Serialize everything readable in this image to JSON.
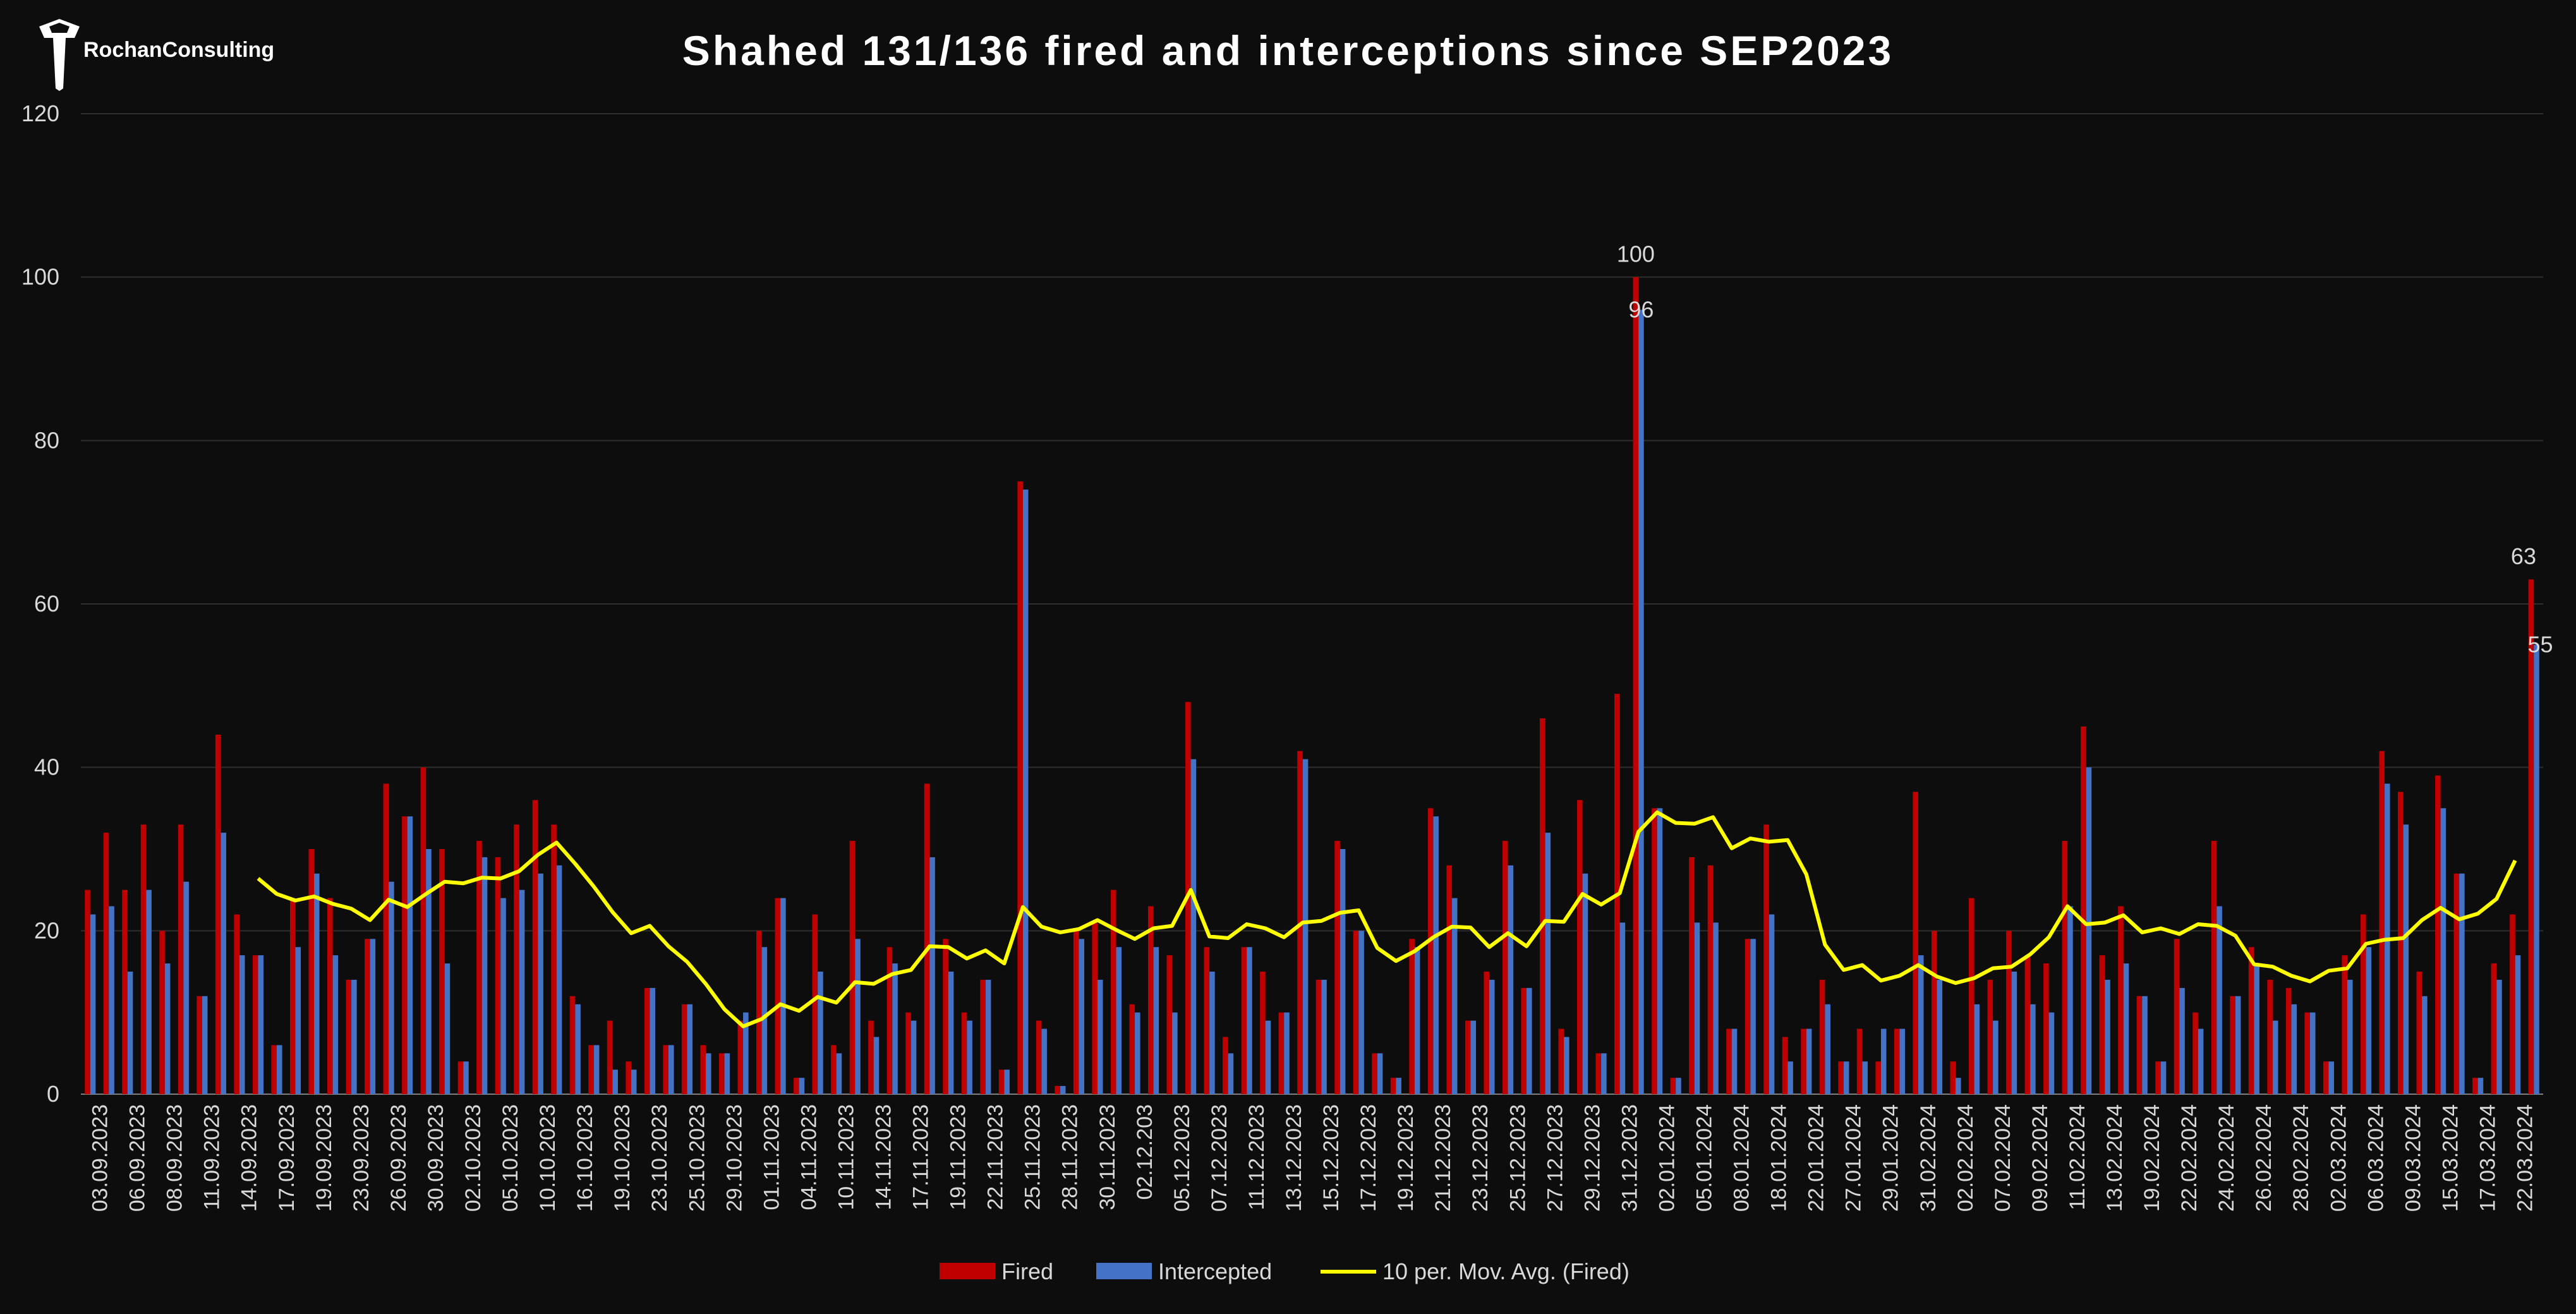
{
  "brand": {
    "name": "RochanConsulting"
  },
  "colors": {
    "fired": "#c00000",
    "intercepted": "#4472c4",
    "avg": "#ffff00",
    "grid": "#2e2e2e",
    "text": "#d9d9d9",
    "background": "#0d0d0d"
  },
  "chart_data": {
    "type": "bar",
    "title": "Shahed 131/136 fired and interceptions since SEP2023",
    "xlabel": "",
    "ylabel": "",
    "ylim": [
      0,
      120
    ],
    "yticks": [
      0,
      20,
      40,
      60,
      80,
      100,
      120
    ],
    "grid": true,
    "legend_position": "bottom",
    "x_tick_labels": [
      "03.09.2023",
      "06.09.2023",
      "08.09.2023",
      "11.09.2023",
      "14.09.2023",
      "17.09.2023",
      "19.09.2023",
      "23.09.2023",
      "26.09.2023",
      "30.09.2023",
      "02.10.2023",
      "05.10.2023",
      "10.10.2023",
      "16.10.2023",
      "19.10.2023",
      "23.10.2023",
      "25.10.2023",
      "29.10.2023",
      "01.11.2023",
      "04.11.2023",
      "10.11.2023",
      "14.11.2023",
      "17.11.2023",
      "19.11.2023",
      "22.11.2023",
      "25.11.2023",
      "28.11.2023",
      "30.11.2023",
      "02.12.203",
      "05.12.2023",
      "07.12.2023",
      "11.12.2023",
      "13.12.2023",
      "15.12.2023",
      "17.12.2023",
      "19.12.2023",
      "21.12.2023",
      "23.12.2023",
      "25.12.2023",
      "27.12.2023",
      "29.12.2023",
      "31.12.2023",
      "02.01.2024",
      "05.01.2024",
      "08.01.2024",
      "18.01.2024",
      "22.01.2024",
      "27.01.2024",
      "29.01.2024",
      "31.02.2024",
      "02.02.2024",
      "07.02.2024",
      "09.02.2024",
      "11.02.2024",
      "13.02.2024",
      "19.02.2024",
      "22.02.2024",
      "24.02.2024",
      "26.02.2024",
      "28.02.2024",
      "02.03.2024",
      "06.03.2024",
      "09.03.2024",
      "15.03.2024",
      "17.03.2024",
      "22.03.2024"
    ],
    "series": [
      {
        "name": "Fired",
        "values": [
          25,
          32,
          25,
          33,
          20,
          33,
          12,
          44,
          22,
          17,
          6,
          24,
          30,
          24,
          14,
          19,
          38,
          34,
          40,
          30,
          4,
          31,
          29,
          33,
          36,
          33,
          12,
          6,
          9,
          4,
          13,
          6,
          11,
          6,
          5,
          9,
          20,
          24,
          2,
          22,
          6,
          31,
          9,
          18,
          10,
          38,
          19,
          10,
          14,
          3,
          75,
          9,
          1,
          20,
          21,
          25,
          11,
          23,
          17,
          48,
          18,
          7,
          18,
          15,
          10,
          42,
          14,
          31,
          20,
          5,
          2,
          19,
          35,
          28,
          9,
          15,
          31,
          13,
          46,
          8,
          36,
          5,
          49,
          100,
          35,
          2,
          29,
          28,
          8,
          19,
          33,
          7,
          8,
          14,
          4,
          8,
          4,
          8,
          37,
          20,
          4,
          24,
          14,
          20,
          17,
          16,
          31,
          45,
          17,
          23,
          12,
          4,
          19,
          10,
          31,
          12,
          18,
          14,
          13,
          10,
          4,
          17,
          22,
          42,
          37,
          15,
          39,
          27,
          2,
          16,
          22,
          63
        ]
      },
      {
        "name": "Intercepted",
        "values": [
          22,
          23,
          15,
          25,
          16,
          26,
          12,
          32,
          17,
          17,
          6,
          18,
          27,
          17,
          14,
          19,
          26,
          34,
          30,
          16,
          4,
          29,
          24,
          25,
          27,
          28,
          11,
          6,
          3,
          3,
          13,
          6,
          11,
          5,
          5,
          10,
          18,
          24,
          2,
          15,
          5,
          19,
          7,
          16,
          9,
          29,
          15,
          9,
          14,
          3,
          74,
          8,
          1,
          19,
          14,
          18,
          10,
          18,
          10,
          41,
          15,
          5,
          18,
          9,
          10,
          41,
          14,
          30,
          20,
          5,
          2,
          18,
          34,
          24,
          9,
          14,
          28,
          13,
          32,
          7,
          27,
          5,
          21,
          96,
          35,
          2,
          21,
          21,
          8,
          19,
          22,
          4,
          8,
          11,
          4,
          4,
          8,
          8,
          17,
          14,
          2,
          11,
          9,
          15,
          11,
          10,
          23,
          40,
          14,
          16,
          12,
          4,
          13,
          8,
          23,
          12,
          16,
          9,
          11,
          10,
          4,
          14,
          18,
          38,
          33,
          12,
          35,
          27,
          2,
          14,
          17,
          55
        ]
      },
      {
        "name": "10 per. Mov. Avg. (Fired)",
        "values": [
          null,
          null,
          null,
          null,
          null,
          null,
          null,
          null,
          null,
          26.4,
          24.5,
          23.7,
          24.2,
          23.3,
          22.7,
          21.3,
          23.8,
          22.9,
          24.5,
          26,
          25.8,
          26.5,
          26.4,
          27.3,
          29.3,
          30.8,
          28.2,
          25.4,
          22.3,
          19.7,
          20.6,
          18.1,
          16.2,
          13.5,
          10.4,
          8.3,
          9.2,
          11,
          10.2,
          11.9,
          11.2,
          13.7,
          13.5,
          14.7,
          15.2,
          18.1,
          18,
          16.6,
          17.6,
          16,
          22.9,
          20.5,
          19.8,
          20.2,
          21.3,
          20.1,
          19,
          20.3,
          20.6,
          25,
          19.3,
          19.1,
          20.8,
          20.3,
          19.2,
          21,
          21.2,
          22.2,
          22.5,
          17.9,
          16.3,
          17.5,
          19.2,
          20.5,
          20.4,
          18,
          19.7,
          18.1,
          21.2,
          21.1,
          24.5,
          23.2,
          24.6,
          32.1,
          34.5,
          33.2,
          33.1,
          33.9,
          30.1,
          31.3,
          30.9,
          31.1,
          26.9,
          18.3,
          15.2,
          15.8,
          13.9,
          14.5,
          15.8,
          14.4,
          13.6,
          14.2,
          15.4,
          15.6,
          17.1,
          19.2,
          23,
          20.8,
          21,
          21.9,
          19.8,
          20.3,
          19.6,
          20.8,
          20.6,
          19.4,
          15.9,
          15.6,
          14.5,
          13.8,
          15.1,
          15.4,
          18.4,
          18.9,
          19.1,
          21.3,
          22.8,
          21.4,
          22.1,
          23.9,
          28.6
        ]
      }
    ],
    "data_labels": [
      {
        "series": "Fired",
        "index": 83,
        "text": "100"
      },
      {
        "series": "Intercepted",
        "index": 83,
        "text": "96"
      },
      {
        "series": "Fired",
        "index": 131,
        "text": "63"
      },
      {
        "series": "Intercepted",
        "index": 131,
        "text": "55"
      }
    ]
  }
}
